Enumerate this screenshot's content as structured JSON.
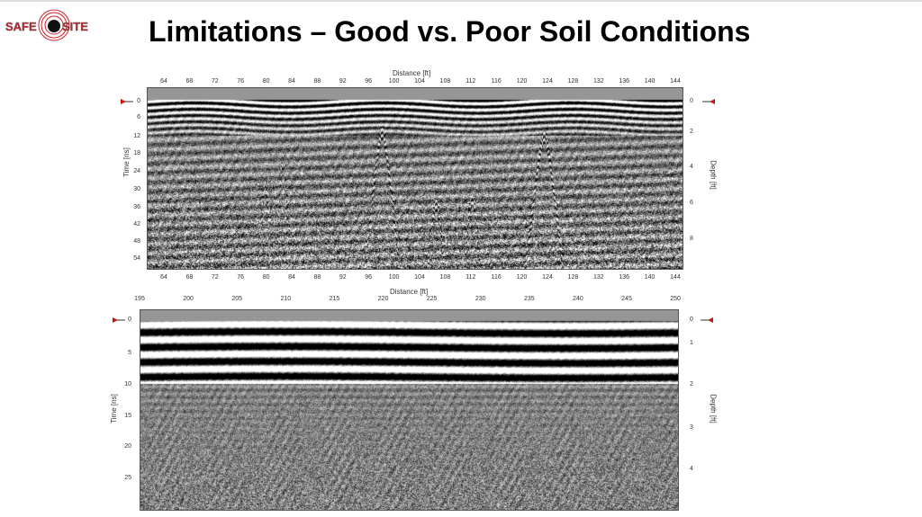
{
  "slide": {
    "title": "Limitations – Good vs. Poor Soil Conditions",
    "logo_text": "SAFE SITE"
  },
  "good_soil_radargram": {
    "x_label": "Distance [ft]",
    "x_ticks": [
      "64",
      "68",
      "72",
      "76",
      "80",
      "84",
      "88",
      "92",
      "96",
      "100",
      "104",
      "108",
      "112",
      "116",
      "120",
      "124",
      "128",
      "132",
      "136",
      "140",
      "144"
    ],
    "left_label": "Time [ns]",
    "left_ticks": [
      "0",
      "6",
      "12",
      "18",
      "24",
      "30",
      "36",
      "42",
      "48",
      "54"
    ],
    "right_label": "Depth [ft]",
    "right_ticks": [
      "0",
      "2",
      "4",
      "6",
      "8"
    ]
  },
  "poor_soil_radargram": {
    "x_label": "Distance [ft]",
    "x_ticks": [
      "195",
      "200",
      "205",
      "210",
      "215",
      "220",
      "225",
      "230",
      "235",
      "240",
      "245",
      "250"
    ],
    "left_label": "Time [ns]",
    "left_ticks": [
      "0",
      "5",
      "10",
      "15",
      "20",
      "25"
    ],
    "right_label": "Depth [ft]",
    "right_ticks": [
      "0",
      "1",
      "2",
      "3",
      "4"
    ]
  },
  "colors": {
    "marker": "#cc1111",
    "logo_red": "#d21f26"
  }
}
